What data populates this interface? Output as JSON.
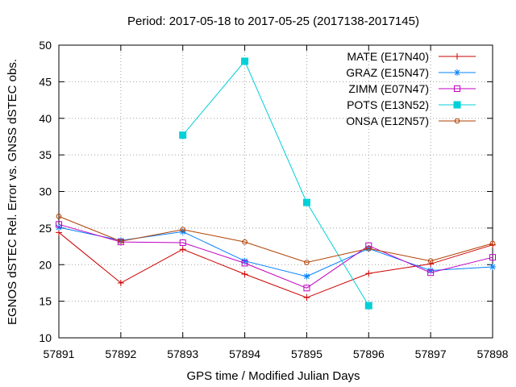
{
  "chart_data": {
    "type": "line",
    "title": "Period: 2017-05-18 to 2017-05-25 (2017138-2017145)",
    "xlabel": "GPS time / Modified Julian Days",
    "ylabel": "EGNOS dSTEC Rel. Error vs. GNSS dSTEC obs.",
    "xlim": [
      57891,
      57898
    ],
    "ylim": [
      10,
      50
    ],
    "xticks": [
      57891,
      57892,
      57893,
      57894,
      57895,
      57896,
      57897,
      57898
    ],
    "yticks": [
      10,
      15,
      20,
      25,
      30,
      35,
      40,
      45,
      50
    ],
    "grid": true,
    "legend_position": "top-right",
    "series": [
      {
        "name": "MATE (E17N40)",
        "color": "#cc0000",
        "marker": "plus",
        "x": [
          57891,
          57892,
          57893,
          57894,
          57895,
          57896,
          57897,
          57898
        ],
        "values": [
          24.4,
          17.5,
          22.1,
          18.7,
          15.5,
          18.8,
          20.1,
          22.7
        ]
      },
      {
        "name": "GRAZ (E15N47)",
        "color": "#0080ff",
        "marker": "star",
        "x": [
          57891,
          57892,
          57893,
          57894,
          57895,
          57896,
          57897,
          57898
        ],
        "values": [
          25.1,
          23.3,
          24.5,
          20.5,
          18.4,
          22.2,
          19.2,
          19.7
        ]
      },
      {
        "name": "ZIMM (E07N47)",
        "color": "#c000c0",
        "marker": "open-square",
        "x": [
          57891,
          57892,
          57893,
          57894,
          57895,
          57896,
          57897,
          57898
        ],
        "values": [
          25.5,
          23.1,
          23.0,
          20.2,
          16.8,
          22.6,
          18.9,
          21.0
        ]
      },
      {
        "name": "POTS (E13N52)",
        "color": "#00d0d8",
        "marker": "filled-square",
        "x": [
          57893,
          57894,
          57895,
          57896
        ],
        "values": [
          37.7,
          47.8,
          28.5,
          14.4
        ]
      },
      {
        "name": "ONSA (E12N57)",
        "color": "#b04000",
        "marker": "open-circle",
        "x": [
          57891,
          57892,
          57893,
          57894,
          57895,
          57896,
          57897,
          57898
        ],
        "values": [
          26.6,
          23.2,
          24.8,
          23.1,
          20.3,
          22.2,
          20.5,
          22.9
        ]
      }
    ]
  }
}
